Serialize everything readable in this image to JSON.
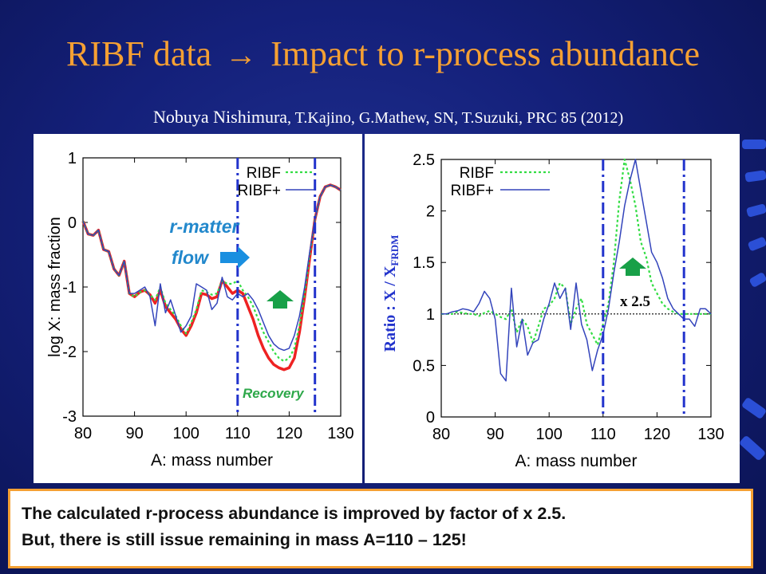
{
  "slide": {
    "title_left": "RIBF data",
    "title_arrow": "→",
    "title_right": "Impact to r-process abundance",
    "citation_lead": "Nobuya Nishimura",
    "citation_rest": ", T.Kajino, G.Mathew, SN, T.Suzuki, PRC 85 (2012)",
    "summary_line1": "The calculated r-process abundance is improved by factor of x 2.5.",
    "summary_line2": "But, there is still issue remaining in mass A=110 – 125!"
  },
  "colors": {
    "title": "#f5a033",
    "ribf": "#33dd44",
    "ribf_plus": "#3344bb",
    "baseline": "#ee2222",
    "markers": "#2233cc",
    "flow_label": "#2288cc",
    "flow_arrow": "#1a8fe0",
    "recovery": "#2ea84a",
    "up_arrow": "#18a048"
  },
  "chart_data": [
    {
      "type": "line",
      "xlabel": "A: mass number",
      "ylabel": "log X: mass fraction",
      "xlim": [
        80,
        130
      ],
      "ylim": [
        -3,
        1
      ],
      "xticks": [
        "80",
        "90",
        "100",
        "110",
        "120",
        "130"
      ],
      "yticks": [
        "-3",
        "-2",
        "-1",
        "0",
        "1"
      ],
      "legend": [
        "RIBF",
        "RIBF+"
      ],
      "legend_position": "top-right",
      "vlines": [
        110,
        125
      ],
      "annotations": {
        "flow_line1": "r-matter",
        "flow_line2": "flow",
        "recovery": "Recovery"
      },
      "series": [
        {
          "name": "",
          "style": "baseline",
          "x": [
            80,
            81,
            82,
            83,
            84,
            85,
            86,
            87,
            88,
            89,
            90,
            91,
            92,
            93,
            94,
            95,
            96,
            97,
            98,
            99,
            100,
            101,
            102,
            103,
            104,
            105,
            106,
            107,
            108,
            109,
            110,
            111,
            112,
            113,
            114,
            115,
            116,
            117,
            118,
            119,
            120,
            121,
            122,
            123,
            124,
            125,
            126,
            127,
            128,
            129,
            130
          ],
          "y": [
            0.02,
            -0.18,
            -0.2,
            -0.12,
            -0.42,
            -0.45,
            -0.72,
            -0.82,
            -0.6,
            -1.1,
            -1.15,
            -1.08,
            -1.05,
            -1.12,
            -1.25,
            -1.05,
            -1.3,
            -1.4,
            -1.5,
            -1.65,
            -1.75,
            -1.6,
            -1.4,
            -1.1,
            -1.12,
            -1.18,
            -1.15,
            -0.9,
            -1.0,
            -1.1,
            -1.05,
            -1.1,
            -1.3,
            -1.5,
            -1.75,
            -1.95,
            -2.1,
            -2.2,
            -2.25,
            -2.28,
            -2.25,
            -2.1,
            -1.7,
            -1.15,
            -0.55,
            0.05,
            0.4,
            0.55,
            0.58,
            0.55,
            0.5
          ]
        },
        {
          "name": "RIBF",
          "x": [
            80,
            81,
            82,
            83,
            84,
            85,
            86,
            87,
            88,
            89,
            90,
            91,
            92,
            93,
            94,
            95,
            96,
            97,
            98,
            99,
            100,
            101,
            102,
            103,
            104,
            105,
            106,
            107,
            108,
            109,
            110,
            111,
            112,
            113,
            114,
            115,
            116,
            117,
            118,
            119,
            120,
            121,
            122,
            123,
            124,
            125,
            126,
            127,
            128,
            129,
            130
          ],
          "y": [
            0.02,
            -0.18,
            -0.2,
            -0.12,
            -0.42,
            -0.45,
            -0.72,
            -0.82,
            -0.6,
            -1.1,
            -1.15,
            -1.08,
            -1.05,
            -1.12,
            -1.2,
            -1.0,
            -1.25,
            -1.35,
            -1.45,
            -1.6,
            -1.72,
            -1.55,
            -1.35,
            -1.05,
            -1.08,
            -1.12,
            -1.1,
            -0.9,
            -0.95,
            -0.95,
            -0.9,
            -1.05,
            -1.15,
            -1.3,
            -1.5,
            -1.7,
            -1.85,
            -2.0,
            -2.1,
            -2.15,
            -2.1,
            -1.95,
            -1.6,
            -1.1,
            -0.5,
            0.05,
            0.4,
            0.55,
            0.58,
            0.55,
            0.5
          ]
        },
        {
          "name": "RIBF+",
          "x": [
            80,
            81,
            82,
            83,
            84,
            85,
            86,
            87,
            88,
            89,
            90,
            91,
            92,
            93,
            94,
            95,
            96,
            97,
            98,
            99,
            100,
            101,
            102,
            103,
            104,
            105,
            106,
            107,
            108,
            109,
            110,
            111,
            112,
            113,
            114,
            115,
            116,
            117,
            118,
            119,
            120,
            121,
            122,
            123,
            124,
            125,
            126,
            127,
            128,
            129,
            130
          ],
          "y": [
            0.02,
            -0.18,
            -0.2,
            -0.12,
            -0.42,
            -0.45,
            -0.72,
            -0.82,
            -0.6,
            -1.1,
            -1.1,
            -1.05,
            -1.0,
            -1.15,
            -1.6,
            -0.95,
            -1.4,
            -1.2,
            -1.45,
            -1.7,
            -1.6,
            -1.45,
            -0.95,
            -1.0,
            -1.05,
            -1.35,
            -1.25,
            -0.85,
            -1.15,
            -1.2,
            -1.1,
            -1.15,
            -1.1,
            -1.2,
            -1.35,
            -1.55,
            -1.75,
            -1.88,
            -1.95,
            -1.98,
            -1.95,
            -1.75,
            -1.45,
            -1.0,
            -0.45,
            0.05,
            0.4,
            0.55,
            0.58,
            0.55,
            0.5
          ]
        }
      ]
    },
    {
      "type": "line",
      "xlabel": "A: mass number",
      "ylabel": "Ratio :  X / X",
      "ylabel_sub": "FRDM",
      "xlim": [
        80,
        130
      ],
      "ylim": [
        0,
        2.5
      ],
      "xticks": [
        "80",
        "90",
        "100",
        "110",
        "120",
        "130"
      ],
      "yticks": [
        "0",
        "0.5",
        "1",
        "1.5",
        "2",
        "2.5"
      ],
      "legend": [
        "RIBF",
        "RIBF+"
      ],
      "legend_position": "top-left",
      "vlines": [
        110,
        125
      ],
      "hline": 1,
      "annotations": {
        "factor": "x 2.5"
      },
      "series": [
        {
          "name": "RIBF",
          "x": [
            80,
            81,
            82,
            83,
            84,
            85,
            86,
            87,
            88,
            89,
            90,
            91,
            92,
            93,
            94,
            95,
            96,
            97,
            98,
            99,
            100,
            101,
            102,
            103,
            104,
            105,
            106,
            107,
            108,
            109,
            110,
            111,
            112,
            113,
            114,
            115,
            116,
            117,
            118,
            119,
            120,
            121,
            122,
            123,
            124,
            125,
            126,
            127,
            128,
            129,
            130
          ],
          "y": [
            1.0,
            1.0,
            1.0,
            1.02,
            1.01,
            1.0,
            1.0,
            0.98,
            1.01,
            1.03,
            1.0,
            0.97,
            0.95,
            1.05,
            0.82,
            0.95,
            0.88,
            0.72,
            0.88,
            1.05,
            1.08,
            1.15,
            1.3,
            1.25,
            0.9,
            1.05,
            1.15,
            0.9,
            0.8,
            0.7,
            0.9,
            1.1,
            1.5,
            2.1,
            2.5,
            2.3,
            2.05,
            1.7,
            1.55,
            1.3,
            1.2,
            1.1,
            1.05,
            1.02,
            1.0,
            1.0,
            1.0,
            1.0,
            1.0,
            1.0,
            1.0
          ]
        },
        {
          "name": "RIBF+",
          "x": [
            80,
            81,
            82,
            83,
            84,
            85,
            86,
            87,
            88,
            89,
            90,
            91,
            92,
            93,
            94,
            95,
            96,
            97,
            98,
            99,
            100,
            101,
            102,
            103,
            104,
            105,
            106,
            107,
            108,
            109,
            110,
            111,
            112,
            113,
            114,
            115,
            116,
            117,
            118,
            119,
            120,
            121,
            122,
            123,
            124,
            125,
            126,
            127,
            128,
            129,
            130
          ],
          "y": [
            1.0,
            1.0,
            1.02,
            1.03,
            1.05,
            1.04,
            1.02,
            1.1,
            1.22,
            1.15,
            0.95,
            0.42,
            0.35,
            1.25,
            0.68,
            0.95,
            0.6,
            0.72,
            0.75,
            0.95,
            1.1,
            1.3,
            1.15,
            1.25,
            0.85,
            1.3,
            0.9,
            0.75,
            0.45,
            0.65,
            0.8,
            1.05,
            1.4,
            1.7,
            2.05,
            2.3,
            2.5,
            2.2,
            1.9,
            1.6,
            1.5,
            1.35,
            1.15,
            1.05,
            1.0,
            0.95,
            0.95,
            0.88,
            1.05,
            1.05,
            1.0
          ]
        }
      ]
    }
  ]
}
